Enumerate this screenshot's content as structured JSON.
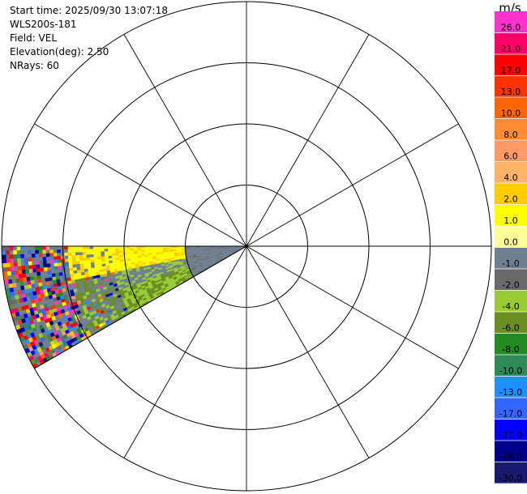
{
  "info": {
    "start_time": "Start time: 2025/09/30 13:07:18",
    "instrument": "WLS200s-181",
    "field": "Field: VEL",
    "elevation": "Elevation(deg): 2.50",
    "nrays": "NRays: 60"
  },
  "colorbar": {
    "unit": "m/s",
    "min": -30.0,
    "max": 30.0,
    "ticks": [
      "26.0",
      "21.0",
      "17.0",
      "13.0",
      "10.0",
      "8.0",
      "6.0",
      "4.0",
      "2.0",
      "1.0",
      "0.0",
      "-1.0",
      "-2.0",
      "-4.0",
      "-6.0",
      "-8.0",
      "-10.0",
      "-13.0",
      "-17.0",
      "-21.0",
      "-26.0",
      "-30.0"
    ],
    "colors": [
      "#ff33cc",
      "#ff0066",
      "#ff0000",
      "#ff3300",
      "#ff6600",
      "#ff8c33",
      "#ff9966",
      "#ffb366",
      "#ffcc00",
      "#ffff00",
      "#ffff99",
      "#708090",
      "#696969",
      "#99cc33",
      "#6b8e23",
      "#228b22",
      "#2e8b57",
      "#1e90ff",
      "#3366ff",
      "#0000ff",
      "#00008b",
      "#191970"
    ]
  },
  "ppi": {
    "range_rings": 4,
    "spoke_count": 12,
    "sector_start_az": 240,
    "sector_end_az": 270
  }
}
